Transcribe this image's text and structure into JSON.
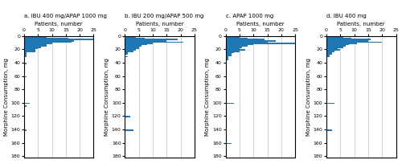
{
  "chart_data": [
    {
      "type": "histogram",
      "orientation": "horizontal",
      "title": "a. IBU 400 mg/APAP 1000 mg",
      "x_label": "Patients, number",
      "y_label": "Morphine Consumption, mg",
      "bins": [
        0,
        2,
        4,
        6,
        8,
        10,
        12,
        14,
        16,
        18,
        20,
        22,
        24,
        26,
        28,
        30,
        32,
        34,
        36,
        38,
        40,
        42,
        44,
        46,
        48,
        50,
        52,
        54,
        56,
        58,
        60,
        62,
        64,
        66,
        68,
        70,
        72,
        74,
        76,
        78,
        80,
        82,
        84,
        86,
        88,
        90,
        92,
        94,
        96,
        98,
        100,
        102,
        104,
        106,
        108,
        110,
        112,
        114,
        116,
        118,
        120,
        122,
        124,
        126,
        128,
        130,
        132,
        134,
        136,
        138,
        140,
        142,
        144,
        146,
        148,
        150,
        152,
        154,
        156,
        158,
        160,
        162,
        164,
        166,
        168,
        170,
        172,
        174,
        176,
        178,
        180,
        182
      ],
      "counts": [
        8,
        16,
        25,
        18,
        17,
        10,
        8,
        8,
        6,
        5,
        4,
        4,
        1,
        1,
        1,
        1,
        0,
        0,
        0,
        0,
        1,
        0,
        0,
        0,
        0,
        0,
        0,
        0,
        0,
        0,
        1,
        0,
        0,
        0,
        0,
        0,
        0,
        0,
        0,
        0,
        0,
        0,
        0,
        0,
        0,
        0,
        0,
        0,
        0,
        0,
        2,
        0,
        1,
        0,
        0,
        0,
        0,
        0,
        0,
        0,
        0,
        0,
        0,
        0,
        0,
        0,
        0,
        0,
        0,
        0,
        1,
        0,
        0,
        0,
        0,
        0,
        0,
        0,
        0,
        0,
        0,
        0,
        0,
        0,
        0,
        0,
        0,
        0,
        0,
        0,
        0
      ],
      "xlim": [
        0,
        25
      ],
      "xticks": [
        0,
        5,
        10,
        15,
        20,
        25
      ],
      "ylim": [
        182,
        0
      ],
      "yticks": [
        0,
        20,
        40,
        60,
        80,
        100,
        120,
        140,
        160,
        180
      ],
      "grid": "x"
    },
    {
      "type": "histogram",
      "orientation": "horizontal",
      "title": "b. IBU 200 mg/APAP 500 mg",
      "x_label": "Patients, number",
      "y_label": "Morphine Consumption, mg",
      "bins": [
        0,
        2,
        4,
        6,
        8,
        10,
        12,
        14,
        16,
        18,
        20,
        22,
        24,
        26,
        28,
        30,
        32,
        34,
        36,
        38,
        40,
        42,
        44,
        46,
        48,
        50,
        52,
        54,
        56,
        58,
        60,
        62,
        64,
        66,
        68,
        70,
        72,
        74,
        76,
        78,
        80,
        82,
        84,
        86,
        88,
        90,
        92,
        94,
        96,
        98,
        100,
        102,
        104,
        106,
        108,
        110,
        112,
        114,
        116,
        118,
        120,
        122,
        124,
        126,
        128,
        130,
        132,
        134,
        136,
        138,
        140,
        142,
        144,
        146,
        148,
        150,
        152,
        154,
        156,
        158,
        160,
        162,
        164,
        166,
        168,
        170,
        172,
        174,
        176,
        178,
        180,
        182
      ],
      "counts": [
        4,
        7,
        19,
        15,
        21,
        10,
        8,
        6,
        5,
        5,
        4,
        3,
        1,
        1,
        0,
        1,
        0,
        0,
        0,
        0,
        0,
        0,
        0,
        0,
        0,
        0,
        0,
        0,
        0,
        0,
        0,
        0,
        0,
        0,
        0,
        0,
        0,
        0,
        0,
        0,
        0,
        0,
        0,
        0,
        0,
        0,
        0,
        0,
        0,
        0,
        0,
        0,
        0,
        0,
        0,
        0,
        0,
        0,
        0,
        0,
        2,
        0,
        0,
        0,
        0,
        0,
        0,
        0,
        0,
        0,
        3,
        0,
        0,
        0,
        0,
        0,
        0,
        0,
        0,
        0,
        0,
        0,
        0,
        0,
        0,
        0,
        0,
        0,
        0,
        0,
        0
      ],
      "xlim": [
        0,
        25
      ],
      "xticks": [
        0,
        5,
        10,
        15,
        20,
        25
      ],
      "ylim": [
        182,
        0
      ],
      "yticks": [
        0,
        20,
        40,
        60,
        80,
        100,
        120,
        140,
        160,
        180
      ],
      "grid": "x"
    },
    {
      "type": "histogram",
      "orientation": "horizontal",
      "title": "c. APAP 1000 mg",
      "x_label": "Patients, number",
      "y_label": "Morphine Consumption, mg",
      "bins": [
        0,
        2,
        4,
        6,
        8,
        10,
        12,
        14,
        16,
        18,
        20,
        22,
        24,
        26,
        28,
        30,
        32,
        34,
        36,
        38,
        40,
        42,
        44,
        46,
        48,
        50,
        52,
        54,
        56,
        58,
        60,
        62,
        64,
        66,
        68,
        70,
        72,
        74,
        76,
        78,
        80,
        82,
        84,
        86,
        88,
        90,
        92,
        94,
        96,
        98,
        100,
        102,
        104,
        106,
        108,
        110,
        112,
        114,
        116,
        118,
        120,
        122,
        124,
        126,
        128,
        130,
        132,
        134,
        136,
        138,
        140,
        142,
        144,
        146,
        148,
        150,
        152,
        154,
        156,
        158,
        160,
        162,
        164,
        166,
        168,
        170,
        172,
        174,
        176,
        178,
        180,
        182
      ],
      "counts": [
        5,
        8,
        14,
        18,
        15,
        25,
        10,
        8,
        6,
        5,
        7,
        5,
        3,
        2,
        2,
        1,
        1,
        1,
        0,
        0,
        0,
        0,
        0,
        0,
        0,
        0,
        0,
        0,
        0,
        0,
        0,
        0,
        0,
        0,
        0,
        0,
        0,
        0,
        0,
        0,
        0,
        0,
        0,
        0,
        0,
        0,
        0,
        0,
        0,
        0,
        3,
        0,
        0,
        0,
        0,
        0,
        0,
        0,
        0,
        0,
        0,
        0,
        0,
        0,
        0,
        0,
        0,
        0,
        0,
        0,
        0,
        0,
        0,
        0,
        0,
        0,
        0,
        0,
        0,
        0,
        2,
        0,
        0,
        0,
        0,
        0,
        0,
        0,
        0,
        0,
        0
      ],
      "xlim": [
        0,
        25
      ],
      "xticks": [
        0,
        5,
        10,
        15,
        20,
        25
      ],
      "ylim": [
        182,
        0
      ],
      "yticks": [
        0,
        20,
        40,
        60,
        80,
        100,
        120,
        140,
        160,
        180
      ],
      "grid": "x"
    },
    {
      "type": "histogram",
      "orientation": "horizontal",
      "title": "d. IBU 400 mg",
      "x_label": "Patients, number",
      "y_label": "Morphine Consumption, mg",
      "bins": [
        0,
        2,
        4,
        6,
        8,
        10,
        12,
        14,
        16,
        18,
        20,
        22,
        24,
        26,
        28,
        30,
        32,
        34,
        36,
        38,
        40,
        42,
        44,
        46,
        48,
        50,
        52,
        54,
        56,
        58,
        60,
        62,
        64,
        66,
        68,
        70,
        72,
        74,
        76,
        78,
        80,
        82,
        84,
        86,
        88,
        90,
        92,
        94,
        96,
        98,
        100,
        102,
        104,
        106,
        108,
        110,
        112,
        114,
        116,
        118,
        120,
        122,
        124,
        126,
        128,
        130,
        132,
        134,
        136,
        138,
        140,
        142,
        144,
        146,
        148,
        150,
        152,
        154,
        156,
        158,
        160,
        162,
        164,
        166,
        168,
        170,
        172,
        174,
        176,
        178,
        180,
        182
      ],
      "counts": [
        6,
        9,
        16,
        15,
        20,
        11,
        8,
        7,
        6,
        4,
        5,
        3,
        2,
        2,
        1,
        1,
        0,
        0,
        0,
        0,
        0,
        0,
        0,
        0,
        0,
        0,
        0,
        0,
        0,
        0,
        0,
        0,
        0,
        0,
        0,
        0,
        0,
        0,
        0,
        0,
        0,
        0,
        0,
        0,
        0,
        0,
        0,
        0,
        0,
        0,
        3,
        0,
        0,
        0,
        0,
        0,
        0,
        0,
        0,
        0,
        0,
        0,
        0,
        0,
        0,
        0,
        0,
        0,
        0,
        0,
        2,
        0,
        0,
        0,
        0,
        0,
        0,
        0,
        0,
        0,
        0,
        0,
        0,
        0,
        0,
        0,
        0,
        0,
        0,
        0,
        0
      ],
      "xlim": [
        0,
        25
      ],
      "xticks": [
        0,
        5,
        10,
        15,
        20,
        25
      ],
      "ylim": [
        182,
        0
      ],
      "yticks": [
        0,
        20,
        40,
        60,
        80,
        100,
        120,
        140,
        160,
        180
      ],
      "grid": "x"
    }
  ]
}
